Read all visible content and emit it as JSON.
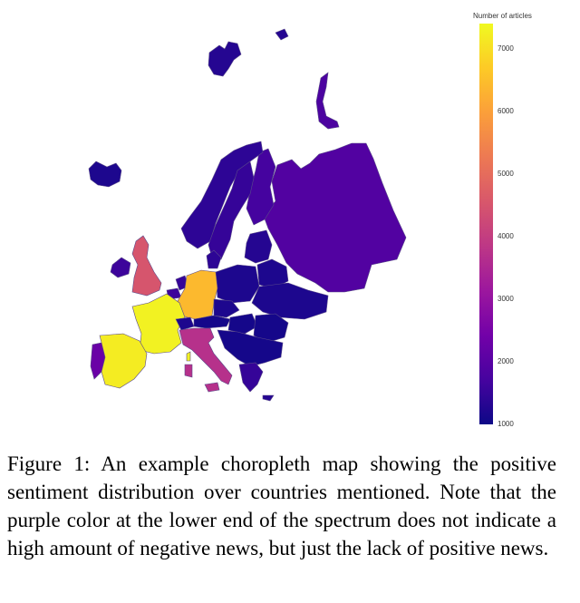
{
  "colorbar": {
    "title": "Number of articles",
    "min": 1000,
    "max": 7400,
    "ticks": [
      "7000",
      "6000",
      "5000",
      "4000",
      "3000",
      "2000",
      "1000"
    ],
    "tick_values": [
      7000,
      6000,
      5000,
      4000,
      3000,
      2000,
      1000
    ],
    "colorscale": [
      "#0d0887",
      "#46039f",
      "#7201a8",
      "#9c179e",
      "#bd3786",
      "#d8576b",
      "#ed7953",
      "#fb9f3a",
      "#fdca26",
      "#f0f921"
    ]
  },
  "countries": {
    "Iceland": 1200,
    "Norway": 1400,
    "Sweden": 1500,
    "Finland": 1700,
    "Russia": 1900,
    "Svalbard": 1300,
    "Novaya Zemlya": 1800,
    "United Kingdom": 4500,
    "Ireland": 1600,
    "France": 7300,
    "Spain": 7200,
    "Portugal": 2300,
    "Germany": 6400,
    "Italy": 3700,
    "Switzerland": 1200,
    "Austria": 1100,
    "Belgium": 1600,
    "Netherlands": 1500,
    "Denmark": 1400,
    "Poland": 1200,
    "Czechia": 1200,
    "Baltics": 1300,
    "Belarus": 1200,
    "Ukraine": 1200,
    "Hungary": 1100,
    "Romania": 1100,
    "Balkans": 1100,
    "Greece": 1500,
    "Sardinia": 3700,
    "Sicily": 3700,
    "Corsica": 7300,
    "Cyprus": 1300
  },
  "caption": "Figure 1: An example choropleth map showing the positive sentiment distribution over countries mentioned. Note that the purple color at the lower end of the spectrum does not indicate a high amount of negative news, but just the lack of positive news."
}
